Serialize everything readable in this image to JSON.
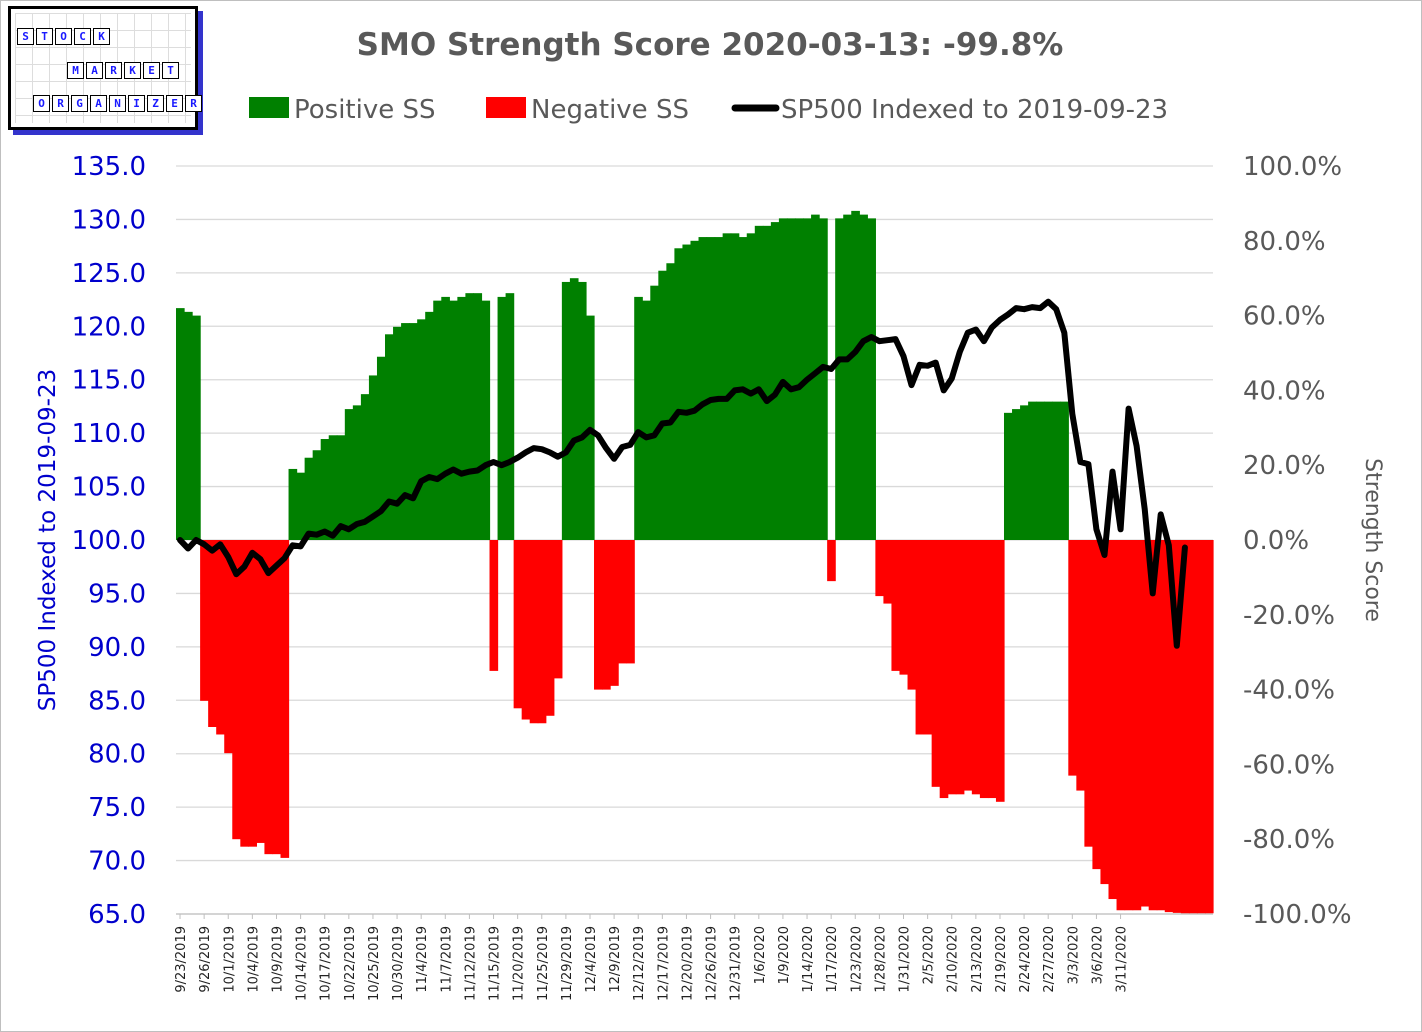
{
  "logo": {
    "words": [
      "STOCK",
      "MARKET",
      "ORGANIZER"
    ]
  },
  "chart_data": {
    "type": "bar",
    "title": "SMO Strength Score 2020-03-13: -99.8%",
    "legend": [
      {
        "label": "Positive SS",
        "color": "#008000",
        "kind": "bar"
      },
      {
        "label": "Negative SS",
        "color": "#ff0000",
        "kind": "bar"
      },
      {
        "label": "SP500 Indexed to 2019-09-23",
        "color": "#000000",
        "kind": "line"
      }
    ],
    "legend_position": "top",
    "ylabel_left": "SP500 Indexed to 2019-09-23",
    "ylabel_right": "Strength Score",
    "ylim_left": [
      65,
      135
    ],
    "ylim_right": [
      -100,
      100
    ],
    "yticks_left": [
      "135.0",
      "130.0",
      "125.0",
      "120.0",
      "115.0",
      "110.0",
      "105.0",
      "100.0",
      "95.0",
      "90.0",
      "85.0",
      "80.0",
      "75.0",
      "70.0",
      "65.0"
    ],
    "yticks_right": [
      "100.0%",
      "80.0%",
      "60.0%",
      "40.0%",
      "20.0%",
      "0.0%",
      "-20.0%",
      "-40.0%",
      "-60.0%",
      "-80.0%",
      "-100.0%"
    ],
    "grid": true,
    "x_tick_labels": [
      "9/23/2019",
      "9/26/2019",
      "10/1/2019",
      "10/4/2019",
      "10/9/2019",
      "10/14/2019",
      "10/17/2019",
      "10/22/2019",
      "10/25/2019",
      "10/30/2019",
      "11/4/2019",
      "11/7/2019",
      "11/12/2019",
      "11/15/2019",
      "11/20/2019",
      "11/25/2019",
      "11/29/2019",
      "12/4/2019",
      "12/9/2019",
      "12/12/2019",
      "12/17/2019",
      "12/20/2019",
      "12/26/2019",
      "12/31/2019",
      "1/6/2020",
      "1/9/2020",
      "1/14/2020",
      "1/17/2020",
      "1/23/2020",
      "1/28/2020",
      "1/31/2020",
      "2/5/2020",
      "2/10/2020",
      "2/13/2020",
      "2/19/2020",
      "2/24/2020",
      "2/27/2020",
      "3/3/2020",
      "3/6/2020",
      "3/11/2020"
    ],
    "x_tick_every": 3,
    "series": [
      {
        "name": "Strength Score",
        "axis": "right",
        "values": [
          62,
          61,
          60,
          -43,
          -50,
          -52,
          -57,
          -80,
          -82,
          -82,
          -81,
          -84,
          -84,
          -85,
          19,
          18,
          22,
          24,
          27,
          28,
          28,
          35,
          36,
          39,
          44,
          49,
          55,
          57,
          58,
          58,
          59,
          61,
          64,
          65,
          64,
          65,
          66,
          66,
          64,
          -35,
          65,
          66,
          -45,
          -48,
          -49,
          -49,
          -47,
          -37,
          69,
          70,
          69,
          60,
          -40,
          -40,
          -39,
          -33,
          -33,
          65,
          64,
          68,
          72,
          74,
          78,
          79,
          80,
          81,
          81,
          81,
          82,
          82,
          81,
          82,
          84,
          84,
          85,
          86,
          86,
          86,
          86,
          87,
          86,
          -11,
          86,
          87,
          88,
          87,
          86,
          -15,
          -17,
          -35,
          -36,
          -40,
          -52,
          -52,
          -66,
          -69,
          -68,
          -68,
          -67,
          -68,
          -69,
          -69,
          -70,
          34,
          35,
          36,
          37,
          37,
          37,
          37,
          37,
          -63,
          -67,
          -82,
          -88,
          -92,
          -96,
          -99,
          -99,
          -99,
          -98,
          -99,
          -99,
          -99.5,
          -99.7,
          -99.8,
          -99.8,
          -99.8,
          -99.8
        ]
      },
      {
        "name": "SP500 Indexed to 2019-09-23",
        "axis": "left",
        "type": "line",
        "values": [
          100.0,
          99.2,
          100.0,
          99.6,
          99.0,
          99.6,
          98.4,
          96.8,
          97.5,
          98.8,
          98.2,
          96.9,
          97.6,
          98.3,
          99.5,
          99.4,
          100.6,
          100.5,
          100.8,
          100.4,
          101.3,
          101.0,
          101.5,
          101.7,
          102.2,
          102.7,
          103.6,
          103.4,
          104.2,
          103.9,
          105.5,
          105.9,
          105.7,
          106.2,
          106.6,
          106.2,
          106.4,
          106.5,
          107.0,
          107.3,
          107.0,
          107.3,
          107.7,
          108.2,
          108.6,
          108.5,
          108.2,
          107.8,
          108.2,
          109.3,
          109.6,
          110.3,
          109.8,
          108.6,
          107.6,
          108.7,
          108.9,
          110.1,
          109.6,
          109.8,
          110.9,
          111.0,
          112.0,
          111.9,
          112.1,
          112.7,
          113.1,
          113.2,
          113.2,
          114.0,
          114.1,
          113.7,
          114.1,
          113.0,
          113.6,
          114.8,
          114.1,
          114.3,
          115.0,
          115.6,
          116.2,
          116.0,
          116.9,
          116.9,
          117.6,
          118.6,
          119.0,
          118.6,
          118.7,
          118.8,
          117.2,
          114.5,
          116.4,
          116.3,
          116.6,
          114.0,
          115.1,
          117.6,
          119.4,
          119.7,
          118.6,
          119.9,
          120.6,
          121.1,
          121.7,
          121.6,
          121.8,
          121.7,
          122.3,
          121.6,
          119.4,
          111.8,
          107.3,
          107.1,
          101.0,
          98.6,
          106.4,
          101.0,
          112.3,
          108.8,
          102.9,
          95.0,
          102.4,
          99.5,
          90.1,
          99.3
        ]
      }
    ]
  }
}
